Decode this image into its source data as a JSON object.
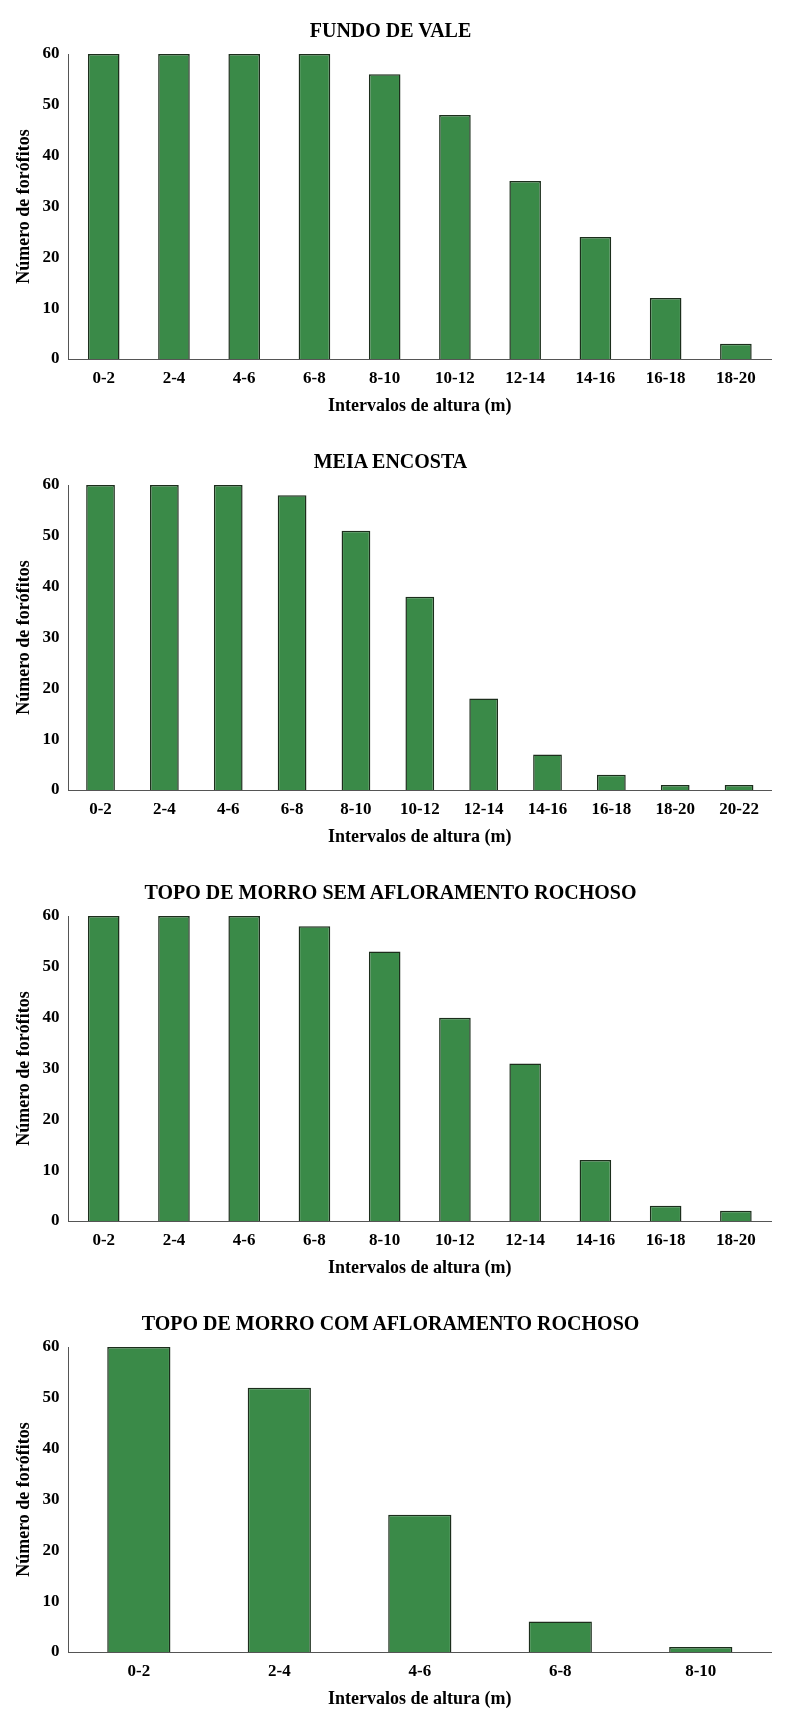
{
  "chart_data": [
    {
      "type": "bar",
      "title": "FUNDO DE VALE",
      "xlabel": "Intervalos de altura (m)",
      "ylabel": "Número de forófitos",
      "categories": [
        "0-2",
        "2-4",
        "4-6",
        "6-8",
        "8-10",
        "10-12",
        "12-14",
        "14-16",
        "16-18",
        "18-20"
      ],
      "values": [
        60,
        60,
        60,
        60,
        56,
        48,
        35,
        24,
        12,
        3
      ],
      "color": "#3a8a48",
      "ylim": [
        0,
        60
      ],
      "yticks": [
        0,
        10,
        20,
        30,
        40,
        50,
        60
      ]
    },
    {
      "type": "bar",
      "title": "MEIA ENCOSTA",
      "xlabel": "Intervalos de altura (m)",
      "ylabel": "Número de forófitos",
      "categories": [
        "0-2",
        "2-4",
        "4-6",
        "6-8",
        "8-10",
        "10-12",
        "12-14",
        "14-16",
        "16-18",
        "18-20",
        "20-22"
      ],
      "values": [
        60,
        60,
        60,
        58,
        51,
        38,
        18,
        7,
        3,
        1,
        1
      ],
      "color": "#3a8a48",
      "ylim": [
        0,
        60
      ],
      "yticks": [
        0,
        10,
        20,
        30,
        40,
        50,
        60
      ]
    },
    {
      "type": "bar",
      "title": "TOPO DE MORRO SEM AFLORAMENTO ROCHOSO",
      "xlabel": "Intervalos de altura (m)",
      "ylabel": "Número de forófitos",
      "categories": [
        "0-2",
        "2-4",
        "4-6",
        "6-8",
        "8-10",
        "10-12",
        "12-14",
        "14-16",
        "16-18",
        "18-20"
      ],
      "values": [
        60,
        60,
        60,
        58,
        53,
        40,
        31,
        12,
        3,
        2
      ],
      "color": "#3a8a48",
      "ylim": [
        0,
        60
      ],
      "yticks": [
        0,
        10,
        20,
        30,
        40,
        50,
        60
      ]
    },
    {
      "type": "bar",
      "title": "TOPO DE MORRO COM AFLORAMENTO ROCHOSO",
      "xlabel": "Intervalos de altura (m)",
      "ylabel": "Número de forófitos",
      "categories": [
        "0-2",
        "2-4",
        "4-6",
        "6-8",
        "8-10"
      ],
      "values": [
        60,
        52,
        27,
        6,
        1
      ],
      "color": "#3a8a48",
      "ylim": [
        0,
        60
      ],
      "yticks": [
        0,
        10,
        20,
        30,
        40,
        50,
        60
      ]
    }
  ]
}
